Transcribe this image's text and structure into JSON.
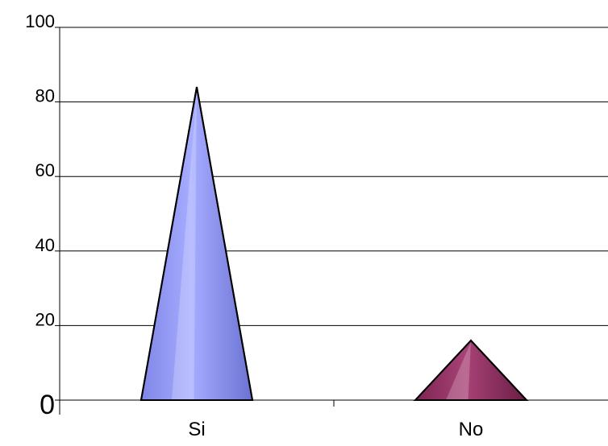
{
  "chart_data": {
    "type": "bar",
    "shape": "cone",
    "categories": [
      "Si",
      "No"
    ],
    "values": [
      84,
      16
    ],
    "ylim": [
      0,
      100
    ],
    "yticks": [
      0,
      20,
      40,
      60,
      80,
      100
    ],
    "grid": true,
    "colors": [
      "#8f97f2",
      "#8e3060"
    ]
  }
}
